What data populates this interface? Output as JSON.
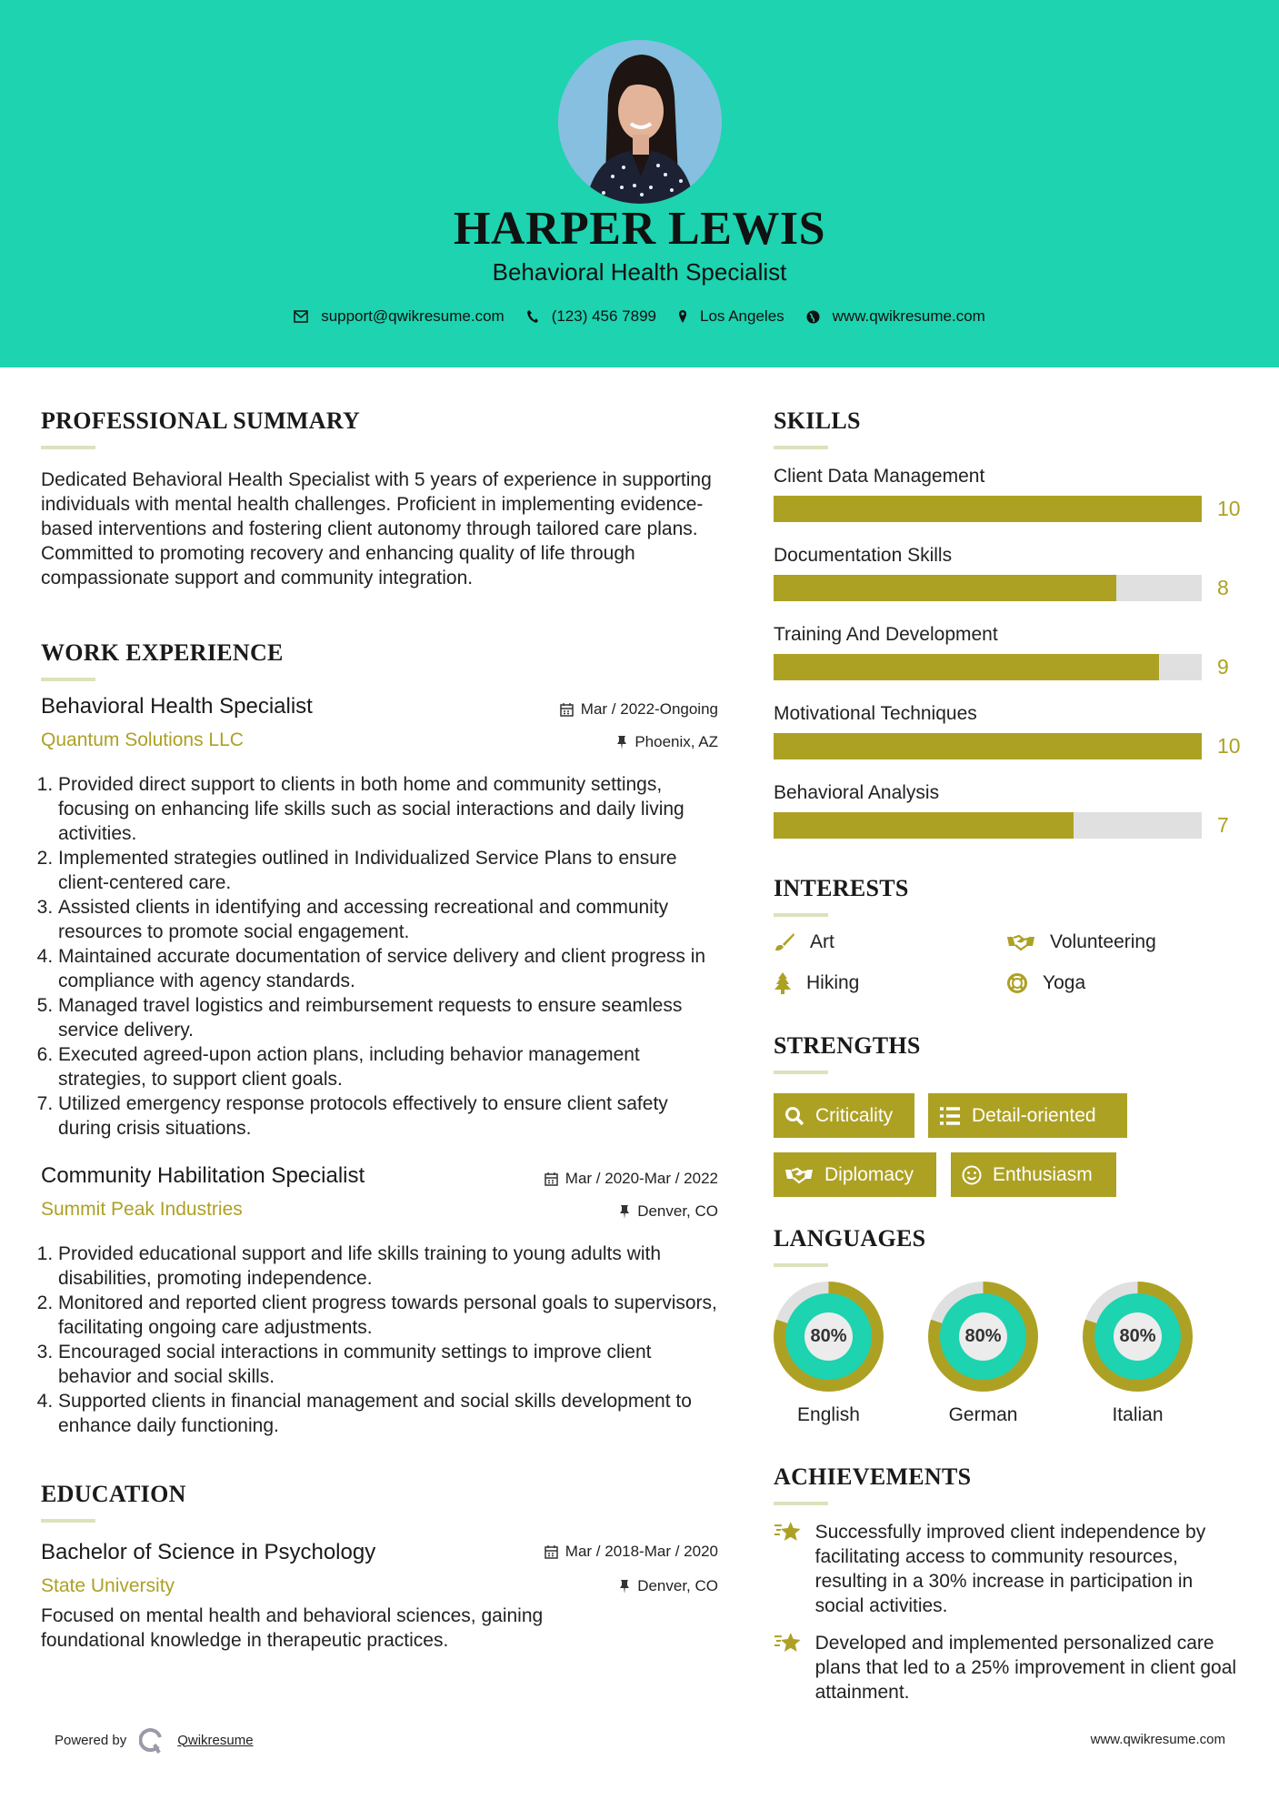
{
  "colors": {
    "accent": "#1dd3b0",
    "olive": "#ada124",
    "track": "#e0e0e0"
  },
  "header": {
    "name": "HARPER LEWIS",
    "title": "Behavioral Health Specialist",
    "email": "support@qwikresume.com",
    "phone": "(123) 456 7899",
    "location": "Los Angeles",
    "website": "www.qwikresume.com"
  },
  "summary": {
    "heading": "PROFESSIONAL SUMMARY",
    "text": "Dedicated Behavioral Health Specialist with 5 years of experience in supporting individuals with mental health challenges. Proficient in implementing evidence-based interventions and fostering client autonomy through tailored care plans. Committed to promoting recovery and enhancing quality of life through compassionate support and community integration."
  },
  "experience": {
    "heading": "WORK EXPERIENCE",
    "jobs": [
      {
        "title": "Behavioral Health Specialist",
        "company": "Quantum Solutions LLC",
        "dates": "Mar / 2022-Ongoing",
        "location": "Phoenix, AZ",
        "bullets": [
          "Provided direct support to clients in both home and community settings, focusing on enhancing life skills such as social interactions and daily living activities.",
          "Implemented strategies outlined in Individualized Service Plans to ensure client-centered care.",
          "Assisted clients in identifying and accessing recreational and community resources to promote social engagement.",
          "Maintained accurate documentation of service delivery and client progress in compliance with agency standards.",
          "Managed travel logistics and reimbursement requests to ensure seamless service delivery.",
          "Executed agreed-upon action plans, including behavior management strategies, to support client goals.",
          "Utilized emergency response protocols effectively to ensure client safety during crisis situations."
        ]
      },
      {
        "title": "Community Habilitation Specialist",
        "company": "Summit Peak Industries",
        "dates": "Mar / 2020-Mar / 2022",
        "location": "Denver, CO",
        "bullets": [
          "Provided educational support and life skills training to young adults with disabilities, promoting independence.",
          "Monitored and reported client progress towards personal goals to supervisors, facilitating ongoing care adjustments.",
          "Encouraged social interactions in community settings to improve client behavior and social skills.",
          "Supported clients in financial management and social skills development to enhance daily functioning."
        ]
      }
    ]
  },
  "education": {
    "heading": "EDUCATION",
    "degree": "Bachelor of Science in Psychology",
    "school": "State University",
    "dates": "Mar / 2018-Mar / 2020",
    "location": "Denver, CO",
    "description": "Focused on mental health and behavioral sciences, gaining foundational knowledge in therapeutic practices."
  },
  "skills": {
    "heading": "SKILLS",
    "max": 10,
    "items": [
      {
        "name": "Client Data Management",
        "level": 10
      },
      {
        "name": "Documentation Skills",
        "level": 8
      },
      {
        "name": "Training And Development",
        "level": 9
      },
      {
        "name": "Motivational Techniques",
        "level": 10
      },
      {
        "name": "Behavioral Analysis",
        "level": 7
      }
    ]
  },
  "interests": {
    "heading": "INTERESTS",
    "items": [
      {
        "name": "Art",
        "icon": "paintbrush-icon"
      },
      {
        "name": "Volunteering",
        "icon": "handshake-icon"
      },
      {
        "name": "Hiking",
        "icon": "tree-icon"
      },
      {
        "name": "Yoga",
        "icon": "lifebuoy-icon"
      }
    ]
  },
  "strengths": {
    "heading": "STRENGTHS",
    "items": [
      {
        "name": "Criticality",
        "icon": "search-icon"
      },
      {
        "name": "Detail-oriented",
        "icon": "list-icon"
      },
      {
        "name": "Diplomacy",
        "icon": "handshake-icon"
      },
      {
        "name": "Enthusiasm",
        "icon": "smile-icon"
      }
    ]
  },
  "languages": {
    "heading": "LANGUAGES",
    "items": [
      {
        "name": "English",
        "percent": 80,
        "label": "80%"
      },
      {
        "name": "German",
        "percent": 80,
        "label": "80%"
      },
      {
        "name": "Italian",
        "percent": 80,
        "label": "80%"
      }
    ]
  },
  "achievements": {
    "heading": "ACHIEVEMENTS",
    "items": [
      "Successfully improved client independence by facilitating access to community resources, resulting in a 30% increase in participation in social activities.",
      "Developed and implemented personalized care plans that led to a 25% improvement in client goal attainment."
    ]
  },
  "footer": {
    "powered_by": "Powered by",
    "brand": "Qwikresume",
    "website": "www.qwikresume.com"
  }
}
